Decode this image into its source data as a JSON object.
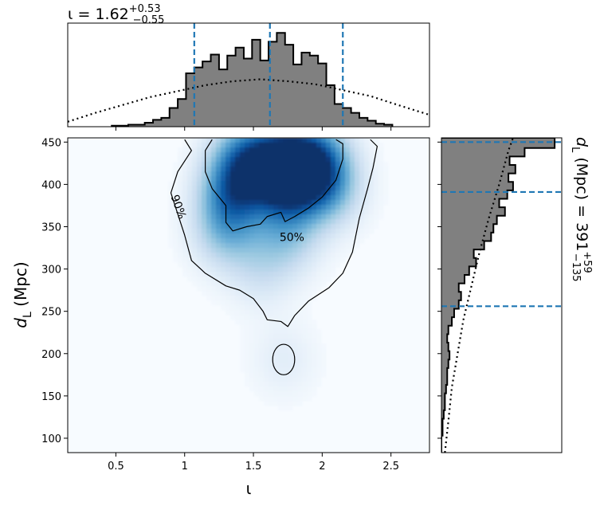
{
  "chart_data": [
    {
      "type": "histogram",
      "panel": "top-marginal",
      "title_var": "ι",
      "title_value": "1.62",
      "title_plus": "+0.53",
      "title_minus": "−0.55",
      "xlim": [
        0.15,
        2.78
      ],
      "x_ticks": [
        0.5,
        1.0,
        1.5,
        2.0,
        2.5
      ],
      "ylim": [
        0,
        1.0
      ],
      "bin_edges": [
        0.47,
        0.53,
        0.59,
        0.65,
        0.71,
        0.77,
        0.83,
        0.89,
        0.95,
        1.01,
        1.07,
        1.13,
        1.19,
        1.25,
        1.31,
        1.37,
        1.43,
        1.49,
        1.55,
        1.61,
        1.67,
        1.73,
        1.79,
        1.85,
        1.91,
        1.97,
        2.03,
        2.09,
        2.15,
        2.21,
        2.27,
        2.33,
        2.39,
        2.45,
        2.51
      ],
      "posterior": [
        0.01,
        0.01,
        0.02,
        0.02,
        0.04,
        0.07,
        0.09,
        0.19,
        0.28,
        0.54,
        0.6,
        0.66,
        0.73,
        0.58,
        0.72,
        0.8,
        0.69,
        0.88,
        0.67,
        0.86,
        0.95,
        0.83,
        0.63,
        0.75,
        0.72,
        0.64,
        0.42,
        0.23,
        0.19,
        0.14,
        0.09,
        0.06,
        0.03,
        0.02
      ],
      "prior_x": [
        0.15,
        0.35,
        0.55,
        0.75,
        0.95,
        1.15,
        1.35,
        1.55,
        1.75,
        1.95,
        2.15,
        2.35,
        2.55,
        2.78
      ],
      "prior_y": [
        0.05,
        0.14,
        0.22,
        0.3,
        0.36,
        0.42,
        0.46,
        0.48,
        0.46,
        0.43,
        0.37,
        0.31,
        0.22,
        0.12
      ],
      "quantiles": [
        1.07,
        1.62,
        2.15
      ]
    },
    {
      "type": "heatmap",
      "panel": "joint",
      "xlabel": "ι",
      "ylabel_var": "d",
      "ylabel_sub": "L",
      "ylabel_unit": "(Mpc)",
      "xlim": [
        0.15,
        2.78
      ],
      "ylim": [
        83,
        455
      ],
      "x_ticks": [
        0.5,
        1.0,
        1.5,
        2.0,
        2.5
      ],
      "y_ticks": [
        100,
        150,
        200,
        250,
        300,
        350,
        400,
        450
      ],
      "density_peaks": [
        {
          "x": 1.72,
          "y": 425,
          "w": 0.9
        },
        {
          "x": 1.95,
          "y": 428,
          "w": 0.75
        },
        {
          "x": 1.45,
          "y": 430,
          "w": 0.7
        },
        {
          "x": 1.35,
          "y": 390,
          "w": 0.65
        },
        {
          "x": 1.75,
          "y": 395,
          "w": 0.55
        },
        {
          "x": 2.05,
          "y": 395,
          "w": 0.45
        },
        {
          "x": 1.3,
          "y": 345,
          "w": 0.4
        },
        {
          "x": 1.75,
          "y": 340,
          "w": 0.35
        },
        {
          "x": 1.55,
          "y": 300,
          "w": 0.2
        },
        {
          "x": 1.72,
          "y": 193,
          "w": 0.12
        }
      ],
      "contours": [
        {
          "label": "90%",
          "label_x": 0.93,
          "label_y": 372,
          "path": [
            [
              1.0,
              453
            ],
            [
              1.05,
              440
            ],
            [
              0.95,
              415
            ],
            [
              0.9,
              390
            ],
            [
              0.95,
              365
            ],
            [
              1.0,
              340
            ],
            [
              1.05,
              310
            ],
            [
              1.15,
              295
            ],
            [
              1.3,
              280
            ],
            [
              1.4,
              275
            ],
            [
              1.5,
              265
            ],
            [
              1.57,
              250
            ],
            [
              1.6,
              240
            ],
            [
              1.7,
              238
            ],
            [
              1.75,
              232
            ],
            [
              1.8,
              245
            ],
            [
              1.9,
              262
            ],
            [
              2.05,
              278
            ],
            [
              2.15,
              295
            ],
            [
              2.22,
              320
            ],
            [
              2.27,
              360
            ],
            [
              2.33,
              395
            ],
            [
              2.37,
              420
            ],
            [
              2.4,
              445
            ],
            [
              2.35,
              453
            ]
          ]
        },
        {
          "label": "50%",
          "label_x": 1.78,
          "label_y": 333,
          "path": [
            [
              1.2,
              453
            ],
            [
              1.15,
              440
            ],
            [
              1.15,
              415
            ],
            [
              1.2,
              395
            ],
            [
              1.3,
              375
            ],
            [
              1.3,
              355
            ],
            [
              1.35,
              345
            ],
            [
              1.45,
              350
            ],
            [
              1.55,
              353
            ],
            [
              1.6,
              362
            ],
            [
              1.7,
              367
            ],
            [
              1.73,
              356
            ],
            [
              1.8,
              362
            ],
            [
              1.9,
              372
            ],
            [
              2.0,
              385
            ],
            [
              2.1,
              405
            ],
            [
              2.15,
              430
            ],
            [
              2.15,
              448
            ],
            [
              2.1,
              453
            ]
          ]
        },
        {
          "label": "",
          "label_x": 0,
          "label_y": 0,
          "ellipse": {
            "cx": 1.72,
            "cy": 193,
            "rx": 0.08,
            "ry": 18
          }
        }
      ]
    },
    {
      "type": "histogram",
      "panel": "right-marginal",
      "orientation": "horizontal",
      "title_var": "d",
      "title_sub": "L",
      "title_unit": "(Mpc)",
      "title_value": "391",
      "title_plus": "+59",
      "title_minus": "−135",
      "ylim": [
        83,
        455
      ],
      "xlim": [
        0,
        1.0
      ],
      "bin_edges": [
        83,
        93,
        103,
        113,
        123,
        133,
        143,
        153,
        163,
        173,
        183,
        193,
        203,
        213,
        223,
        233,
        243,
        253,
        263,
        273,
        283,
        293,
        303,
        313,
        323,
        333,
        343,
        353,
        363,
        373,
        383,
        393,
        403,
        413,
        423,
        433,
        443,
        455
      ],
      "posterior": [
        0.0,
        0.0,
        0.01,
        0.01,
        0.02,
        0.03,
        0.03,
        0.04,
        0.05,
        0.05,
        0.06,
        0.07,
        0.06,
        0.05,
        0.06,
        0.09,
        0.11,
        0.15,
        0.17,
        0.15,
        0.2,
        0.24,
        0.3,
        0.28,
        0.37,
        0.43,
        0.45,
        0.48,
        0.55,
        0.5,
        0.57,
        0.62,
        0.58,
        0.64,
        0.59,
        0.72,
        0.98
      ],
      "prior_y": [
        83,
        120,
        160,
        200,
        240,
        280,
        320,
        360,
        400,
        440,
        455
      ],
      "prior_x": [
        0.03,
        0.06,
        0.09,
        0.14,
        0.19,
        0.26,
        0.33,
        0.41,
        0.5,
        0.58,
        0.62
      ],
      "quantiles": [
        256,
        391,
        450
      ]
    }
  ]
}
